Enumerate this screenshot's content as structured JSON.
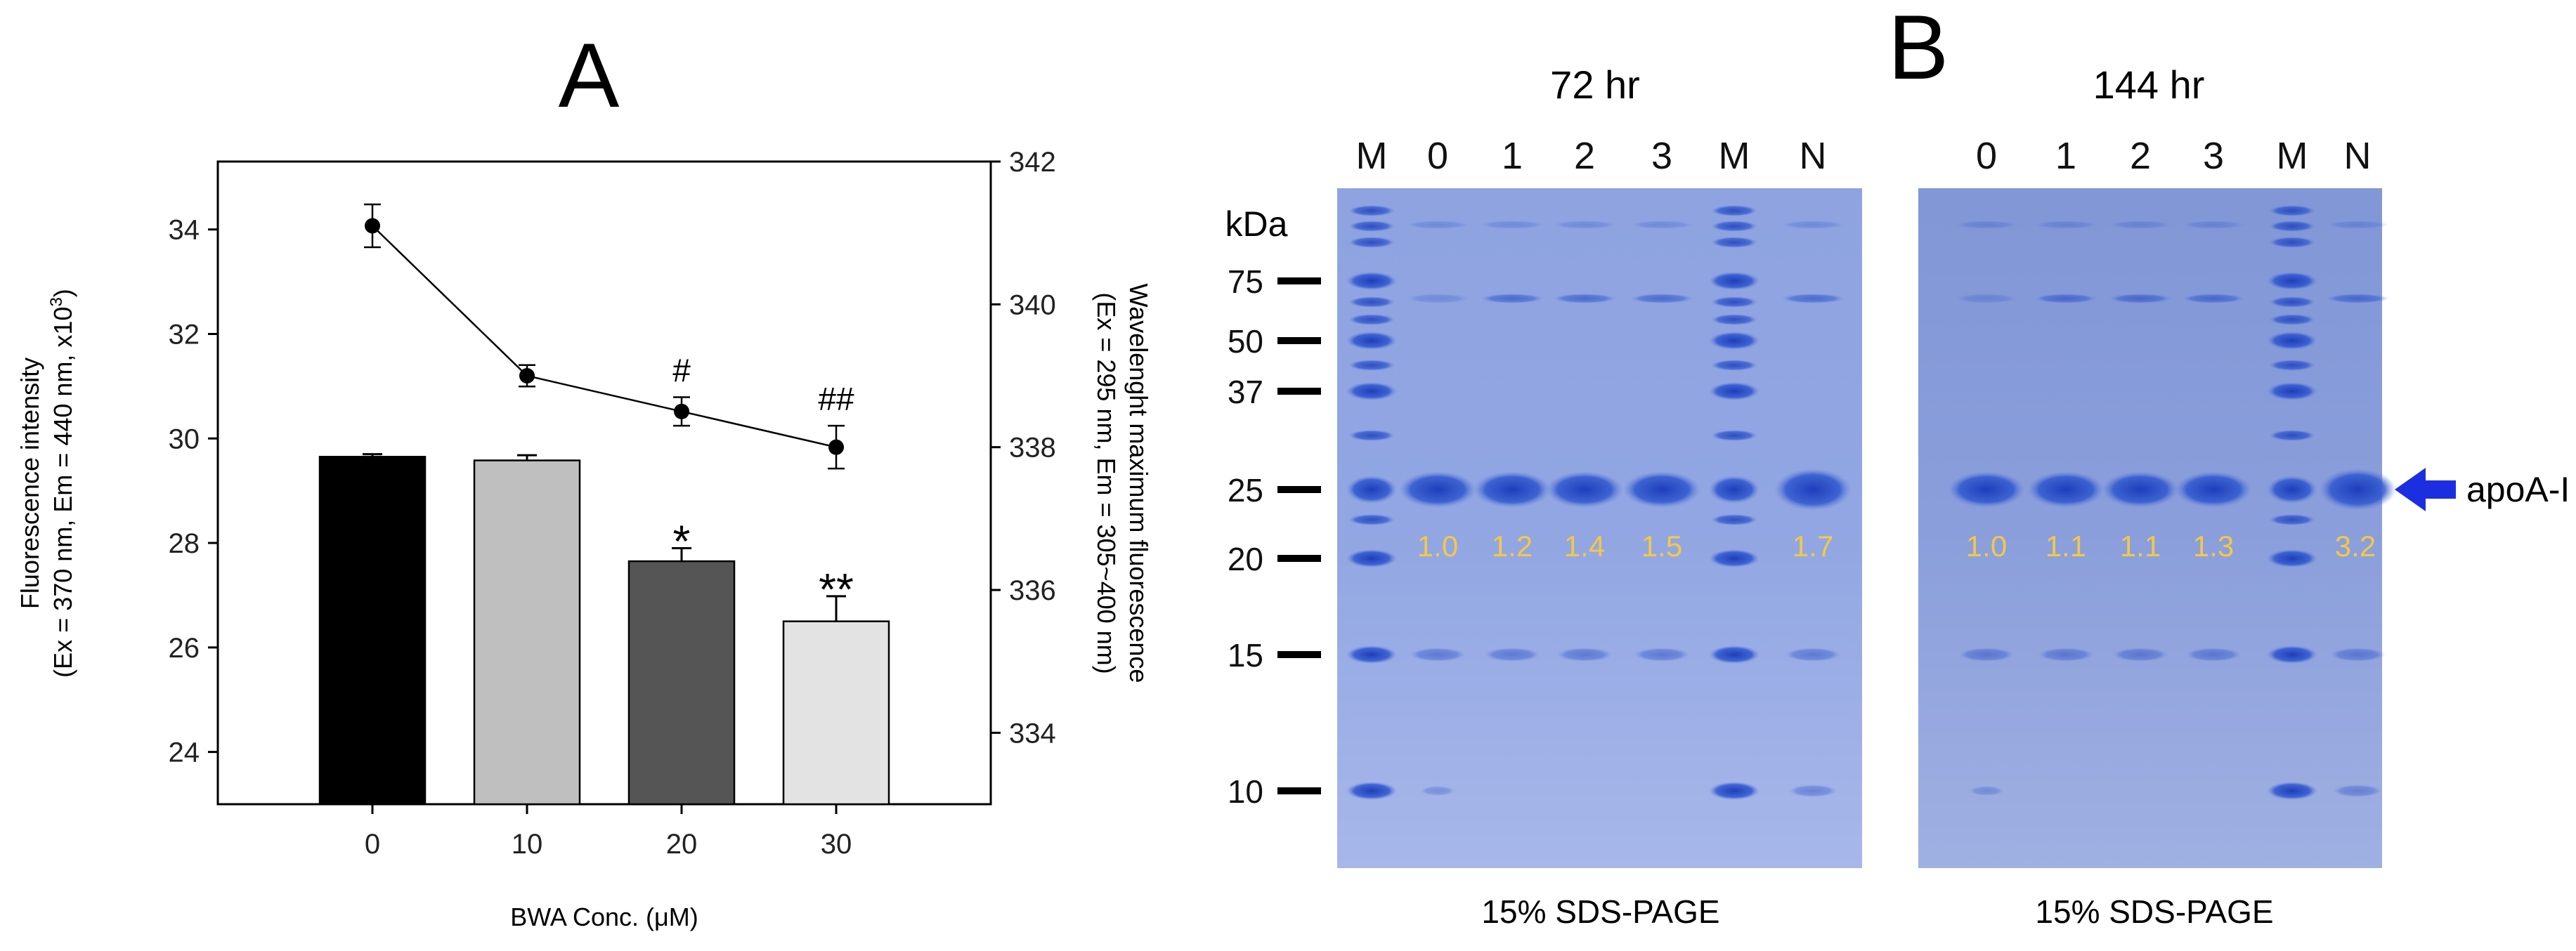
{
  "panel_a": {
    "label": "A",
    "left_axis_title_line1": "Fluorescence intensity",
    "left_axis_title_line2": "(Ex = 370 nm, Em = 440 nm, x10",
    "left_axis_title_sup": "3",
    "left_axis_title_end": ")",
    "right_axis_title_line1": "Wavelenght maximum fluorescence",
    "right_axis_title_line2": "(Ex = 295 nm, Em = 305~400 nm)",
    "x_axis_title": "BWA Conc. (μM)"
  },
  "chart_data": {
    "type": "bar",
    "categories": [
      "0",
      "10",
      "20",
      "30"
    ],
    "xlabel": "BWA Conc. (μM)",
    "ylabel": "Fluorescence intensity (Ex = 370 nm, Em = 440 nm, x10^3)",
    "y2label": "Wavelenght maximum fluorescence (Ex = 295 nm, Em = 305~400 nm)",
    "ylim": [
      23,
      35.3
    ],
    "y2lim": [
      333,
      342
    ],
    "yticks": [
      24,
      26,
      28,
      30,
      32,
      34
    ],
    "y2ticks": [
      334,
      336,
      338,
      340,
      342
    ],
    "series": [
      {
        "values": [
          29.65,
          29.58,
          27.65,
          26.5
        ],
        "errors": [
          0.05,
          0.1,
          0.25,
          0.48
        ],
        "colors": [
          "#000000",
          "#bfbfbf",
          "#555555",
          "#e3e3e3"
        ],
        "annotations": [
          "",
          "",
          "*",
          "**"
        ]
      },
      {
        "values": [
          341.1,
          339.0,
          338.5,
          338.0
        ],
        "errors": [
          0.3,
          0.15,
          0.2,
          0.3
        ],
        "annotations": [
          "",
          "",
          "#",
          "##"
        ]
      }
    ]
  },
  "panel_b": {
    "label": "B",
    "gel_caption": "15% SDS-PAGE",
    "kda_label": "kDa",
    "markers": [
      "75",
      "50",
      "37",
      "25",
      "20",
      "15",
      "10"
    ],
    "gel_72": {
      "title": "72 hr",
      "lanes": [
        "M",
        "0",
        "1",
        "2",
        "3",
        "M",
        "N"
      ],
      "ratios": [
        "1.0",
        "1.2",
        "1.4",
        "1.5",
        "1.7"
      ]
    },
    "gel_144": {
      "title": "144 hr",
      "lanes": [
        "0",
        "1",
        "2",
        "3",
        "M",
        "N"
      ],
      "ratios": [
        "1.0",
        "1.1",
        "1.1",
        "1.3",
        "3.2"
      ]
    },
    "arrow_label": "apoA-I"
  },
  "colors": {
    "gel_blue": "#8aa0e2",
    "band_blue": "#1f46c4",
    "ratio_text": "#f2c84a",
    "arrow_blue": "#1c2fe0"
  }
}
